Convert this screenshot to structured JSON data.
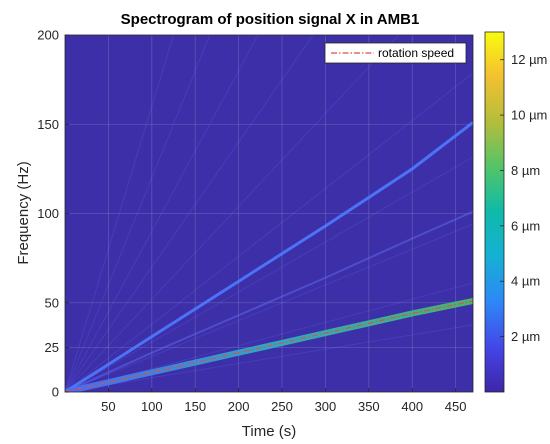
{
  "chart_data": {
    "type": "heatmap",
    "title": "Spectrogram of position signal X in AMB1",
    "xlabel": "Time (s)",
    "ylabel": "Frequency (Hz)",
    "xlim": [
      0,
      470
    ],
    "ylim": [
      0,
      200
    ],
    "xticks": [
      "50",
      "100",
      "150",
      "200",
      "250",
      "300",
      "350",
      "400",
      "450"
    ],
    "yticks": [
      "0",
      "25",
      "50",
      "100",
      "150",
      "200"
    ],
    "grid": true,
    "legend": {
      "position": "top-right",
      "entries": [
        "rotation speed"
      ]
    },
    "colorbar": {
      "range": [
        0,
        13
      ],
      "ticks": [
        "2 µm",
        "4 µm",
        "6 µm",
        "8 µm",
        "10 µm",
        "12 µm"
      ],
      "colormap": "parula"
    },
    "series": [
      {
        "name": "rotation speed",
        "style": "dash-dot",
        "color": "#d9504c",
        "x": [
          0,
          50,
          100,
          150,
          200,
          250,
          300,
          350,
          400,
          470
        ],
        "y": [
          0,
          5.5,
          11,
          16.5,
          22,
          27.5,
          33,
          38.5,
          44,
          51
        ]
      }
    ],
    "harmonic_lines": [
      {
        "x": [
          0,
          100,
          200,
          300,
          400,
          470
        ],
        "y": [
          0,
          31,
          62,
          93,
          125,
          151
        ]
      },
      {
        "x": [
          0,
          100,
          200,
          300,
          400,
          470
        ],
        "y": [
          0,
          22,
          43,
          64,
          86,
          101
        ]
      }
    ],
    "background_color": "#3d2fa8"
  }
}
